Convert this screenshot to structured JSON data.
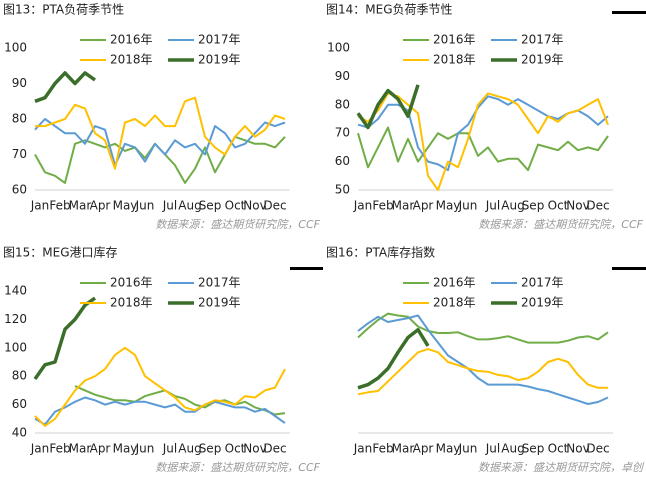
{
  "chart_data": [
    {
      "type": "line",
      "title": "图13：PTA负荷季节性",
      "source": "数据来源：盛达期货研究院，CCF",
      "x": [
        1,
        3,
        5,
        7,
        9,
        11,
        13,
        15,
        17,
        19,
        21,
        23,
        25,
        27,
        29,
        31,
        33,
        35,
        37,
        39,
        41,
        43,
        45,
        47,
        49,
        51
      ],
      "xlim": [
        1,
        52
      ],
      "xticks": [
        {
          "value": 2,
          "label": "Jan"
        },
        {
          "value": 6,
          "label": "Feb"
        },
        {
          "value": 10,
          "label": "Mar"
        },
        {
          "value": 14,
          "label": "Apr"
        },
        {
          "value": 19,
          "label": "May"
        },
        {
          "value": 23,
          "label": "Jun"
        },
        {
          "value": 28,
          "label": "Jul"
        },
        {
          "value": 32,
          "label": "Aug"
        },
        {
          "value": 36,
          "label": "Sep"
        },
        {
          "value": 41,
          "label": "Oct"
        },
        {
          "value": 45,
          "label": "Nov"
        },
        {
          "value": 49,
          "label": "Dec"
        }
      ],
      "ylim": [
        60,
        100
      ],
      "yticks": [
        60,
        70,
        80,
        90,
        100
      ],
      "series": [
        {
          "name": "2016年",
          "color": "#70ad47",
          "values": [
            70,
            65,
            64,
            62,
            73,
            74,
            73,
            72,
            73,
            71,
            72,
            69,
            73,
            70,
            67,
            62,
            66,
            72,
            65,
            70,
            75,
            74,
            73,
            73,
            72,
            75
          ]
        },
        {
          "name": "2017年",
          "color": "#5b9bd5",
          "values": [
            77,
            80,
            78,
            76,
            76,
            73,
            78,
            77,
            67,
            73,
            72,
            68,
            73,
            70,
            74,
            72,
            73,
            70,
            78,
            76,
            72,
            73,
            76,
            79,
            78,
            79
          ]
        },
        {
          "name": "2018年",
          "color": "#ffc000",
          "values": [
            78,
            78,
            79,
            80,
            84,
            83,
            76,
            74,
            66,
            79,
            80,
            78,
            81,
            78,
            78,
            85,
            86,
            75,
            72,
            70,
            75,
            78,
            75,
            77,
            81,
            80
          ]
        },
        {
          "name": "2019年",
          "color": "#3b6e2b",
          "values": [
            85,
            86,
            90,
            93,
            90,
            93,
            91,
            null,
            null,
            null,
            null,
            null,
            null,
            null,
            null,
            null,
            null,
            null,
            null,
            null,
            null,
            null,
            null,
            null,
            null,
            null
          ]
        }
      ]
    },
    {
      "type": "line",
      "title": "图14：MEG负荷季节性",
      "source": "数据来源：盛达期货研究院，CCF",
      "x": [
        1,
        3,
        5,
        7,
        9,
        11,
        13,
        15,
        17,
        19,
        21,
        23,
        25,
        27,
        29,
        31,
        33,
        35,
        37,
        39,
        41,
        43,
        45,
        47,
        49,
        51
      ],
      "xlim": [
        1,
        52
      ],
      "xticks": [
        {
          "value": 2,
          "label": "Jan"
        },
        {
          "value": 6,
          "label": "Feb"
        },
        {
          "value": 10,
          "label": "Mar"
        },
        {
          "value": 14,
          "label": "Apr"
        },
        {
          "value": 19,
          "label": "May"
        },
        {
          "value": 23,
          "label": "Jun"
        },
        {
          "value": 28,
          "label": "Jul"
        },
        {
          "value": 32,
          "label": "Aug"
        },
        {
          "value": 36,
          "label": "Sep"
        },
        {
          "value": 41,
          "label": "Oct"
        },
        {
          "value": 45,
          "label": "Nov"
        },
        {
          "value": 49,
          "label": "Dec"
        }
      ],
      "ylim": [
        50,
        100
      ],
      "yticks": [
        50,
        60,
        70,
        80,
        90,
        100
      ],
      "series": [
        {
          "name": "2016年",
          "color": "#70ad47",
          "values": [
            70,
            58,
            65,
            72,
            60,
            68,
            60,
            65,
            70,
            68,
            70,
            70,
            62,
            65,
            60,
            61,
            61,
            57,
            66,
            65,
            64,
            67,
            64,
            65,
            64,
            69
          ]
        },
        {
          "name": "2017年",
          "color": "#5b9bd5",
          "values": [
            73,
            72,
            75,
            80,
            80,
            78,
            65,
            60,
            59,
            57,
            70,
            73,
            79,
            83,
            82,
            80,
            82,
            80,
            78,
            76,
            75,
            77,
            78,
            76,
            73,
            76
          ]
        },
        {
          "name": "2018年",
          "color": "#ffc000",
          "values": [
            76,
            74,
            78,
            84,
            83,
            80,
            77,
            55,
            50,
            60,
            58,
            68,
            80,
            84,
            83,
            82,
            80,
            75,
            70,
            76,
            74,
            77,
            78,
            80,
            82,
            73
          ]
        },
        {
          "name": "2019年",
          "color": "#3b6e2b",
          "values": [
            77,
            72,
            80,
            85,
            82,
            76,
            87,
            null,
            null,
            null,
            null,
            null,
            null,
            null,
            null,
            null,
            null,
            null,
            null,
            null,
            null,
            null,
            null,
            null,
            null,
            null
          ]
        }
      ]
    },
    {
      "type": "line",
      "title": "图15：MEG港口库存",
      "source": "数据来源：盛达期货研究院，CCF",
      "x": [
        1,
        3,
        5,
        7,
        9,
        11,
        13,
        15,
        17,
        19,
        21,
        23,
        25,
        27,
        29,
        31,
        33,
        35,
        37,
        39,
        41,
        43,
        45,
        47,
        49,
        51
      ],
      "xlim": [
        1,
        52
      ],
      "xticks": [
        {
          "value": 2,
          "label": "Jan"
        },
        {
          "value": 6,
          "label": "Feb"
        },
        {
          "value": 10,
          "label": "Mar"
        },
        {
          "value": 14,
          "label": "Apr"
        },
        {
          "value": 19,
          "label": "May"
        },
        {
          "value": 23,
          "label": "Jun"
        },
        {
          "value": 28,
          "label": "Jul"
        },
        {
          "value": 32,
          "label": "Aug"
        },
        {
          "value": 36,
          "label": "Sep"
        },
        {
          "value": 41,
          "label": "Oct"
        },
        {
          "value": 45,
          "label": "Nov"
        },
        {
          "value": 49,
          "label": "Dec"
        }
      ],
      "ylim": [
        40,
        140
      ],
      "yticks": [
        40,
        60,
        80,
        100,
        120,
        140
      ],
      "series": [
        {
          "name": "2016年",
          "color": "#70ad47",
          "values": [
            null,
            null,
            null,
            null,
            73,
            70,
            67,
            65,
            63,
            63,
            62,
            66,
            68,
            70,
            66,
            64,
            60,
            58,
            62,
            63,
            60,
            62,
            58,
            56,
            53,
            54
          ]
        },
        {
          "name": "2017年",
          "color": "#5b9bd5",
          "values": [
            50,
            46,
            55,
            58,
            62,
            65,
            63,
            60,
            62,
            60,
            62,
            62,
            60,
            58,
            60,
            55,
            55,
            60,
            62,
            60,
            58,
            58,
            55,
            57,
            52,
            47
          ]
        },
        {
          "name": "2018年",
          "color": "#ffc000",
          "values": [
            52,
            45,
            50,
            60,
            70,
            77,
            80,
            85,
            95,
            100,
            95,
            80,
            75,
            70,
            65,
            58,
            56,
            60,
            63,
            62,
            60,
            66,
            65,
            70,
            72,
            85
          ]
        },
        {
          "name": "2019年",
          "color": "#3b6e2b",
          "values": [
            78,
            88,
            90,
            113,
            120,
            130,
            135,
            null,
            null,
            null,
            null,
            null,
            null,
            null,
            null,
            null,
            null,
            null,
            null,
            null,
            null,
            null,
            null,
            null,
            null,
            null
          ]
        }
      ]
    },
    {
      "type": "line",
      "title": "图16：PTA库存指数",
      "source": "数据来源：盛达期货研究院，卓创",
      "x": [
        1,
        3,
        5,
        7,
        9,
        11,
        13,
        15,
        17,
        19,
        21,
        23,
        25,
        27,
        29,
        31,
        33,
        35,
        37,
        39,
        41,
        43,
        45,
        47,
        49,
        51
      ],
      "xlim": [
        1,
        52
      ],
      "xticks": [
        {
          "value": 2,
          "label": "Jan"
        },
        {
          "value": 6,
          "label": "Feb"
        },
        {
          "value": 10,
          "label": "Mar"
        },
        {
          "value": 14,
          "label": "Apr"
        },
        {
          "value": 19,
          "label": "May"
        },
        {
          "value": 23,
          "label": "Jun"
        },
        {
          "value": 28,
          "label": "Jul"
        },
        {
          "value": 32,
          "label": "Aug"
        },
        {
          "value": 36,
          "label": "Sep"
        },
        {
          "value": 41,
          "label": "Oct"
        },
        {
          "value": 45,
          "label": "Nov"
        },
        {
          "value": 49,
          "label": "Dec"
        }
      ],
      "ylim": [
        0,
        220
      ],
      "yticks": [],
      "series": [
        {
          "name": "2016年",
          "color": "#70ad47",
          "values": [
            148,
            162,
            175,
            185,
            182,
            180,
            165,
            158,
            155,
            155,
            156,
            150,
            145,
            145,
            147,
            150,
            145,
            140,
            140,
            140,
            140,
            143,
            148,
            150,
            145,
            156
          ]
        },
        {
          "name": "2017年",
          "color": "#5b9bd5",
          "values": [
            158,
            170,
            180,
            172,
            175,
            178,
            182,
            160,
            140,
            120,
            110,
            100,
            85,
            75,
            75,
            75,
            75,
            72,
            68,
            65,
            60,
            55,
            50,
            45,
            48,
            55
          ]
        },
        {
          "name": "2018年",
          "color": "#ffc000",
          "values": [
            60,
            63,
            65,
            80,
            95,
            110,
            125,
            130,
            125,
            110,
            105,
            100,
            96,
            95,
            90,
            88,
            82,
            85,
            95,
            110,
            115,
            110,
            90,
            75,
            70,
            70
          ]
        },
        {
          "name": "2019年",
          "color": "#3b6e2b",
          "values": [
            70,
            75,
            85,
            100,
            125,
            148,
            160,
            135,
            null,
            null,
            null,
            null,
            null,
            null,
            null,
            null,
            null,
            null,
            null,
            null,
            null,
            null,
            null,
            null,
            null,
            null
          ]
        }
      ]
    }
  ]
}
